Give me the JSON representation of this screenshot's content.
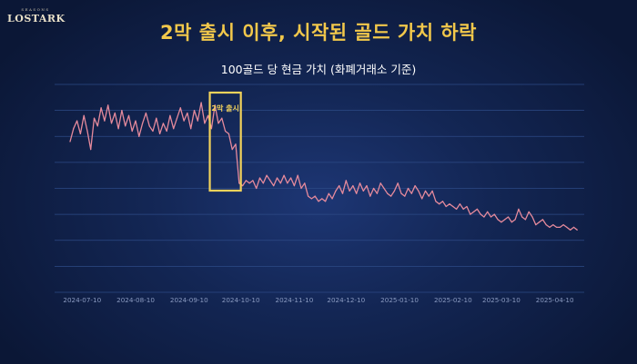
{
  "logo": {
    "subtitle": "SEASONS",
    "name": "LOSTARK"
  },
  "page_title": "2막 출시 이후, 시작된 골드 가치 하락",
  "colors": {
    "title": "#f2c84b",
    "line": "#e58a9c",
    "highlight": "#f3d35b",
    "grid": "#2d4a86"
  },
  "chart_data": {
    "type": "line",
    "title": "100골드 당 현금 가치 (화폐거래소 기준)",
    "xlabel": "",
    "ylabel": "",
    "x_ticks": [
      "2024-07-10",
      "2024-08-10",
      "2024-09-10",
      "2024-10-10",
      "2024-11-10",
      "2024-12-10",
      "2025-01-10",
      "2025-02-10",
      "2025-03-10",
      "2025-04-10"
    ],
    "xlim": [
      "2024-07-03",
      "2025-04-26"
    ],
    "ylim": [
      0,
      8
    ],
    "y_ticks_shown": false,
    "grid": "horizontal",
    "annotation": {
      "label": "2막 출시",
      "from": "2024-09-22",
      "to": "2024-10-10"
    },
    "series": [
      {
        "name": "",
        "points": [
          [
            "2024-07-03",
            5.8
          ],
          [
            "2024-07-05",
            6.3
          ],
          [
            "2024-07-07",
            6.6
          ],
          [
            "2024-07-09",
            6.1
          ],
          [
            "2024-07-11",
            6.8
          ],
          [
            "2024-07-13",
            6.2
          ],
          [
            "2024-07-15",
            5.5
          ],
          [
            "2024-07-17",
            6.7
          ],
          [
            "2024-07-19",
            6.4
          ],
          [
            "2024-07-21",
            7.1
          ],
          [
            "2024-07-23",
            6.6
          ],
          [
            "2024-07-25",
            7.2
          ],
          [
            "2024-07-27",
            6.5
          ],
          [
            "2024-07-29",
            6.9
          ],
          [
            "2024-07-31",
            6.3
          ],
          [
            "2024-08-02",
            7.0
          ],
          [
            "2024-08-04",
            6.4
          ],
          [
            "2024-08-06",
            6.8
          ],
          [
            "2024-08-08",
            6.2
          ],
          [
            "2024-08-10",
            6.6
          ],
          [
            "2024-08-12",
            6.0
          ],
          [
            "2024-08-14",
            6.5
          ],
          [
            "2024-08-16",
            6.9
          ],
          [
            "2024-08-18",
            6.4
          ],
          [
            "2024-08-20",
            6.2
          ],
          [
            "2024-08-22",
            6.7
          ],
          [
            "2024-08-24",
            6.1
          ],
          [
            "2024-08-26",
            6.5
          ],
          [
            "2024-08-28",
            6.2
          ],
          [
            "2024-08-30",
            6.8
          ],
          [
            "2024-09-01",
            6.3
          ],
          [
            "2024-09-03",
            6.7
          ],
          [
            "2024-09-05",
            7.1
          ],
          [
            "2024-09-07",
            6.6
          ],
          [
            "2024-09-09",
            6.9
          ],
          [
            "2024-09-11",
            6.3
          ],
          [
            "2024-09-13",
            7.0
          ],
          [
            "2024-09-15",
            6.6
          ],
          [
            "2024-09-17",
            7.3
          ],
          [
            "2024-09-19",
            6.5
          ],
          [
            "2024-09-21",
            6.8
          ],
          [
            "2024-09-23",
            6.3
          ],
          [
            "2024-09-25",
            7.2
          ],
          [
            "2024-09-27",
            6.5
          ],
          [
            "2024-09-29",
            6.7
          ],
          [
            "2024-10-01",
            6.2
          ],
          [
            "2024-10-03",
            6.1
          ],
          [
            "2024-10-05",
            5.5
          ],
          [
            "2024-10-07",
            5.7
          ],
          [
            "2024-10-09",
            4.2
          ],
          [
            "2024-10-11",
            4.1
          ],
          [
            "2024-10-13",
            4.3
          ],
          [
            "2024-10-15",
            4.2
          ],
          [
            "2024-10-17",
            4.3
          ],
          [
            "2024-10-19",
            4.0
          ],
          [
            "2024-10-21",
            4.4
          ],
          [
            "2024-10-23",
            4.2
          ],
          [
            "2024-10-25",
            4.5
          ],
          [
            "2024-10-27",
            4.3
          ],
          [
            "2024-10-29",
            4.1
          ],
          [
            "2024-10-31",
            4.4
          ],
          [
            "2024-11-02",
            4.2
          ],
          [
            "2024-11-04",
            4.5
          ],
          [
            "2024-11-06",
            4.2
          ],
          [
            "2024-11-08",
            4.4
          ],
          [
            "2024-11-10",
            4.1
          ],
          [
            "2024-11-12",
            4.5
          ],
          [
            "2024-11-14",
            4.0
          ],
          [
            "2024-11-16",
            4.2
          ],
          [
            "2024-11-18",
            3.7
          ],
          [
            "2024-11-20",
            3.6
          ],
          [
            "2024-11-22",
            3.7
          ],
          [
            "2024-11-24",
            3.5
          ],
          [
            "2024-11-26",
            3.6
          ],
          [
            "2024-11-28",
            3.5
          ],
          [
            "2024-11-30",
            3.8
          ],
          [
            "2024-12-02",
            3.6
          ],
          [
            "2024-12-04",
            3.9
          ],
          [
            "2024-12-06",
            4.1
          ],
          [
            "2024-12-08",
            3.8
          ],
          [
            "2024-12-10",
            4.3
          ],
          [
            "2024-12-12",
            3.9
          ],
          [
            "2024-12-14",
            4.1
          ],
          [
            "2024-12-16",
            3.8
          ],
          [
            "2024-12-18",
            4.2
          ],
          [
            "2024-12-20",
            3.9
          ],
          [
            "2024-12-22",
            4.1
          ],
          [
            "2024-12-24",
            3.7
          ],
          [
            "2024-12-26",
            4.0
          ],
          [
            "2024-12-28",
            3.8
          ],
          [
            "2024-12-30",
            4.2
          ],
          [
            "2025-01-01",
            4.0
          ],
          [
            "2025-01-03",
            3.8
          ],
          [
            "2025-01-05",
            3.7
          ],
          [
            "2025-01-07",
            3.9
          ],
          [
            "2025-01-09",
            4.2
          ],
          [
            "2025-01-11",
            3.8
          ],
          [
            "2025-01-13",
            3.7
          ],
          [
            "2025-01-15",
            4.0
          ],
          [
            "2025-01-17",
            3.8
          ],
          [
            "2025-01-19",
            4.1
          ],
          [
            "2025-01-21",
            3.9
          ],
          [
            "2025-01-23",
            3.6
          ],
          [
            "2025-01-25",
            3.9
          ],
          [
            "2025-01-27",
            3.7
          ],
          [
            "2025-01-29",
            3.9
          ],
          [
            "2025-01-31",
            3.5
          ],
          [
            "2025-02-02",
            3.4
          ],
          [
            "2025-02-04",
            3.5
          ],
          [
            "2025-02-06",
            3.3
          ],
          [
            "2025-02-08",
            3.4
          ],
          [
            "2025-02-10",
            3.3
          ],
          [
            "2025-02-12",
            3.2
          ],
          [
            "2025-02-14",
            3.4
          ],
          [
            "2025-02-16",
            3.2
          ],
          [
            "2025-02-18",
            3.3
          ],
          [
            "2025-02-20",
            3.0
          ],
          [
            "2025-02-22",
            3.1
          ],
          [
            "2025-02-24",
            3.2
          ],
          [
            "2025-02-26",
            3.0
          ],
          [
            "2025-02-28",
            2.9
          ],
          [
            "2025-03-02",
            3.1
          ],
          [
            "2025-03-04",
            2.9
          ],
          [
            "2025-03-06",
            3.0
          ],
          [
            "2025-03-08",
            2.8
          ],
          [
            "2025-03-10",
            2.7
          ],
          [
            "2025-03-12",
            2.8
          ],
          [
            "2025-03-14",
            2.9
          ],
          [
            "2025-03-16",
            2.7
          ],
          [
            "2025-03-18",
            2.8
          ],
          [
            "2025-03-20",
            3.2
          ],
          [
            "2025-03-22",
            2.9
          ],
          [
            "2025-03-24",
            2.8
          ],
          [
            "2025-03-26",
            3.1
          ],
          [
            "2025-03-28",
            2.9
          ],
          [
            "2025-03-30",
            2.6
          ],
          [
            "2025-04-01",
            2.7
          ],
          [
            "2025-04-03",
            2.8
          ],
          [
            "2025-04-05",
            2.6
          ],
          [
            "2025-04-07",
            2.5
          ],
          [
            "2025-04-09",
            2.6
          ],
          [
            "2025-04-11",
            2.5
          ],
          [
            "2025-04-13",
            2.5
          ],
          [
            "2025-04-15",
            2.6
          ],
          [
            "2025-04-17",
            2.5
          ],
          [
            "2025-04-19",
            2.4
          ],
          [
            "2025-04-21",
            2.5
          ],
          [
            "2025-04-23",
            2.4
          ]
        ]
      }
    ]
  }
}
